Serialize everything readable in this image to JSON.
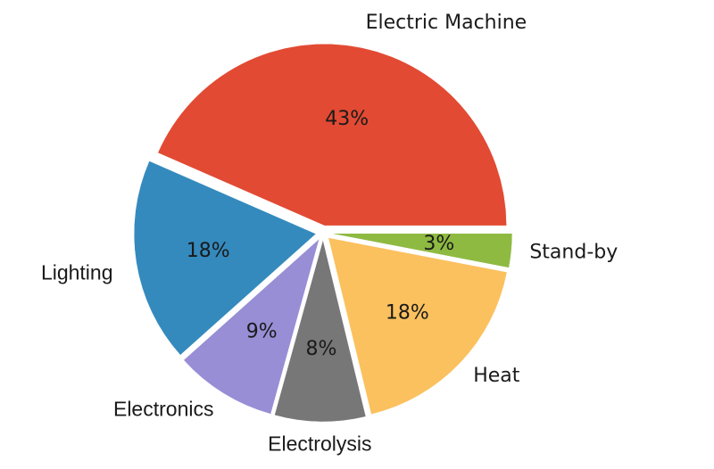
{
  "chart_data": {
    "type": "pie",
    "title": "",
    "slices": [
      {
        "label": "Electric Machine",
        "value": 43,
        "pct_label": "43%",
        "color": "#e24a33"
      },
      {
        "label": "Lighting",
        "value": 18,
        "pct_label": "18%",
        "color": "#348abd"
      },
      {
        "label": "Electronics",
        "value": 9,
        "pct_label": "9%",
        "color": "#988ed5"
      },
      {
        "label": "Electrolysis",
        "value": 8,
        "pct_label": "8%",
        "color": "#777777"
      },
      {
        "label": "Heat",
        "value": 18,
        "pct_label": "18%",
        "color": "#fbc15e"
      },
      {
        "label": "Stand-by",
        "value": 3,
        "pct_label": "3%",
        "color": "#8eba42"
      }
    ],
    "exploded": true,
    "legend": "none"
  }
}
